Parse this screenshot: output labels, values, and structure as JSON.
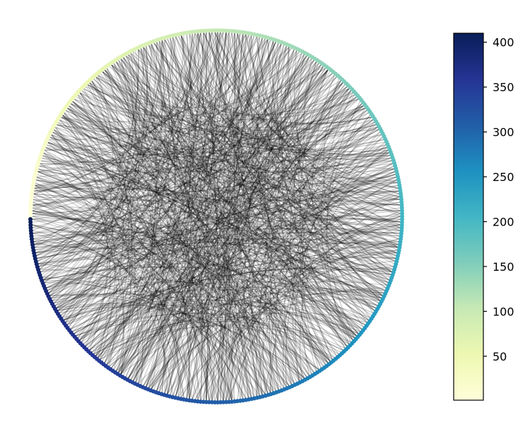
{
  "chart_data": {
    "type": "circular-graph",
    "node_count": 410,
    "node_color_range": [
      1,
      410
    ],
    "edge_color": "#000000",
    "edge_alpha": 0.2,
    "colormap": "YlGnBu",
    "colormap_stops": [
      "#ffffd9",
      "#edf8b1",
      "#c7e9b4",
      "#7fcdbb",
      "#41b6c4",
      "#1d91c0",
      "#225ea8",
      "#253494",
      "#081d58"
    ],
    "colorbar": {
      "range": [
        1,
        410
      ],
      "ticks": [
        50,
        100,
        150,
        200,
        250,
        300,
        350,
        400
      ],
      "tick_labels": [
        "50",
        "100",
        "150",
        "200",
        "250",
        "300",
        "350",
        "400"
      ]
    },
    "grid": false,
    "axes_visible": false
  }
}
